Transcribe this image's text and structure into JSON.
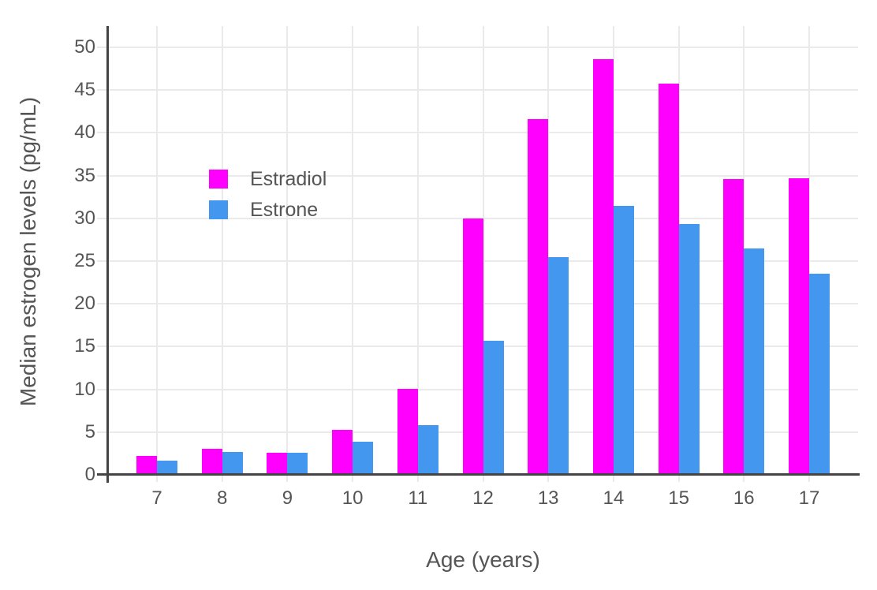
{
  "chart_data": {
    "type": "bar",
    "title": "",
    "xlabel": "Age (years)",
    "ylabel": "Median estrogen levels (pg/mL)",
    "categories": [
      "7",
      "8",
      "9",
      "10",
      "11",
      "12",
      "13",
      "14",
      "15",
      "16",
      "17"
    ],
    "series": [
      {
        "name": "Estradiol",
        "color": "#FF00FF",
        "values": [
          2.2,
          3.0,
          2.6,
          5.3,
          10.1,
          30.0,
          41.6,
          48.6,
          45.8,
          34.6,
          34.7
        ]
      },
      {
        "name": "Estrone",
        "color": "#4397EF",
        "values": [
          1.7,
          2.7,
          2.6,
          3.9,
          5.8,
          15.7,
          25.5,
          31.5,
          29.3,
          26.5,
          23.5
        ]
      }
    ],
    "yticks": [
      0,
      5,
      10,
      15,
      20,
      25,
      30,
      35,
      40,
      45,
      50
    ],
    "ylim": [
      0,
      52.5
    ],
    "grid": true,
    "legend_position": "inside-top-left",
    "colors": {
      "axis": "#444444",
      "grid": "#EAEAEA",
      "text": "#555555",
      "background": "#FFFFFF"
    }
  }
}
